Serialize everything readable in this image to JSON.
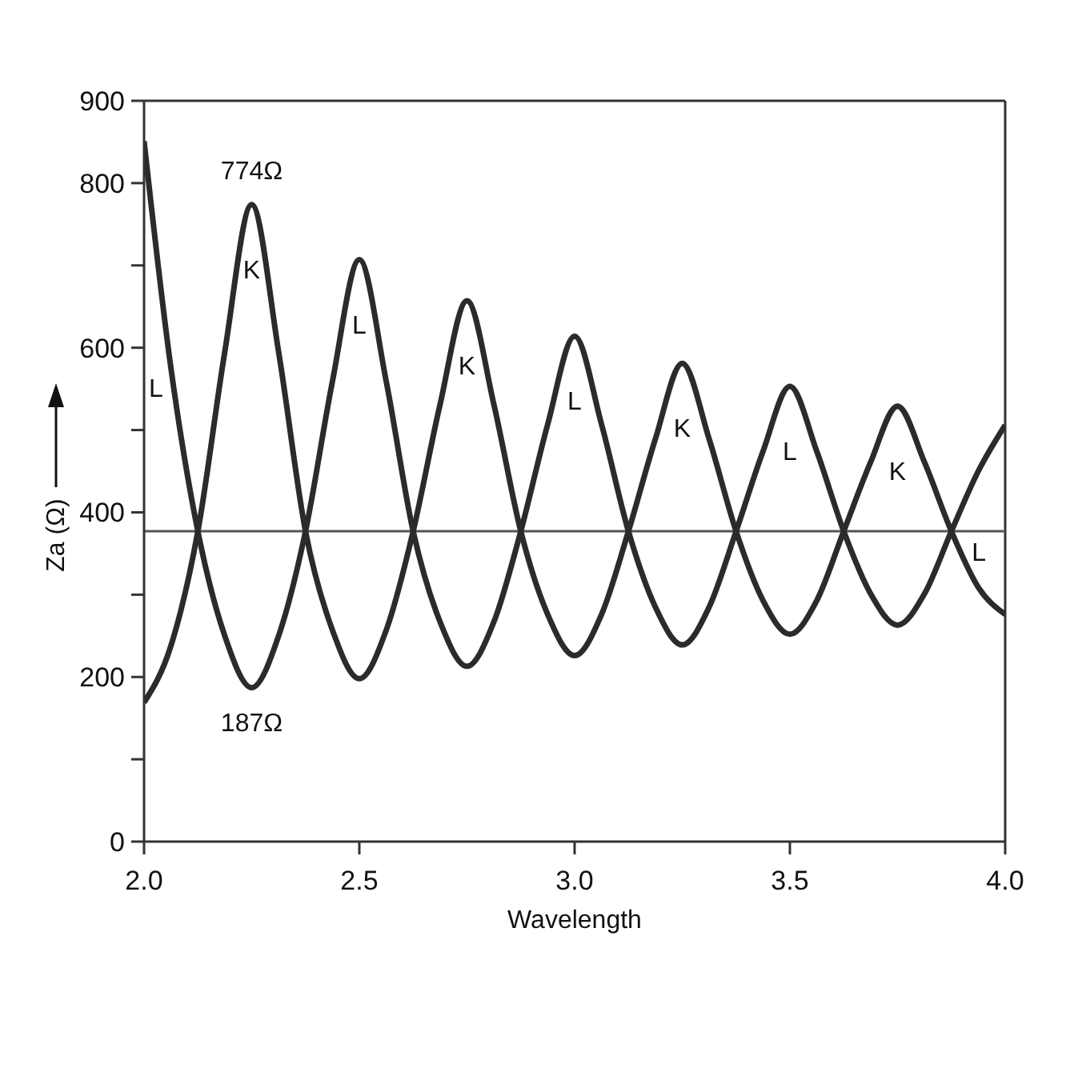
{
  "chart_data": {
    "type": "line",
    "xlabel": "Wavelength",
    "ylabel": "Za (Ω)",
    "x": [
      2.0,
      2.0625,
      2.125,
      2.1875,
      2.25,
      2.3125,
      2.375,
      2.4375,
      2.5,
      2.5625,
      2.625,
      2.6875,
      2.75,
      2.8125,
      2.875,
      2.9375,
      3.0,
      3.0625,
      3.125,
      3.1875,
      3.25,
      3.3125,
      3.375,
      3.4375,
      3.5,
      3.5625,
      3.625,
      3.6875,
      3.75,
      3.8125,
      3.875,
      3.9375,
      4.0
    ],
    "series": [
      {
        "name": "K",
        "color": "#2b2b2b",
        "values": [
          169,
          238,
          377,
          595,
          774,
          595,
          377,
          257,
          198,
          257,
          377,
          531,
          657,
          531,
          377,
          276,
          226,
          276,
          377,
          489,
          581,
          489,
          377,
          293,
          252,
          293,
          377,
          461,
          529,
          461,
          377,
          309,
          276
        ]
      },
      {
        "name": "L",
        "color": "#2b2b2b",
        "values": [
          851,
          575,
          377,
          250,
          187,
          250,
          377,
          559,
          707,
          559,
          377,
          267,
          213,
          267,
          377,
          507,
          614,
          507,
          377,
          285,
          239,
          285,
          377,
          474,
          553,
          474,
          377,
          301,
          263,
          301,
          377,
          450,
          506
        ]
      }
    ],
    "xlim": [
      2.0,
      4.0
    ],
    "xticks": [
      {
        "value": 2,
        "label": "2.0"
      },
      {
        "value": 2.5,
        "label": "2.5"
      },
      {
        "value": 3,
        "label": "3.0"
      },
      {
        "value": 3.5,
        "label": "3.5"
      },
      {
        "value": 4,
        "label": "4.0"
      }
    ],
    "ylim": [
      0,
      900
    ],
    "yticks": [
      0,
      {
        "value": 100,
        "label": null
      },
      200,
      {
        "value": 300,
        "label": null
      },
      400,
      {
        "value": 500,
        "label": null
      },
      600,
      {
        "value": 700,
        "label": null
      },
      800,
      900
    ],
    "ref_lines": [
      {
        "axis": "y",
        "value": 377,
        "color": "#555555"
      }
    ],
    "annotations": [
      {
        "text": "774Ω",
        "x": 2.25,
        "y": 774
      },
      {
        "text": "187Ω",
        "x": 2.25,
        "y": 187
      }
    ],
    "grid": false,
    "legend": false,
    "marker": "none",
    "line_style": "solid"
  }
}
